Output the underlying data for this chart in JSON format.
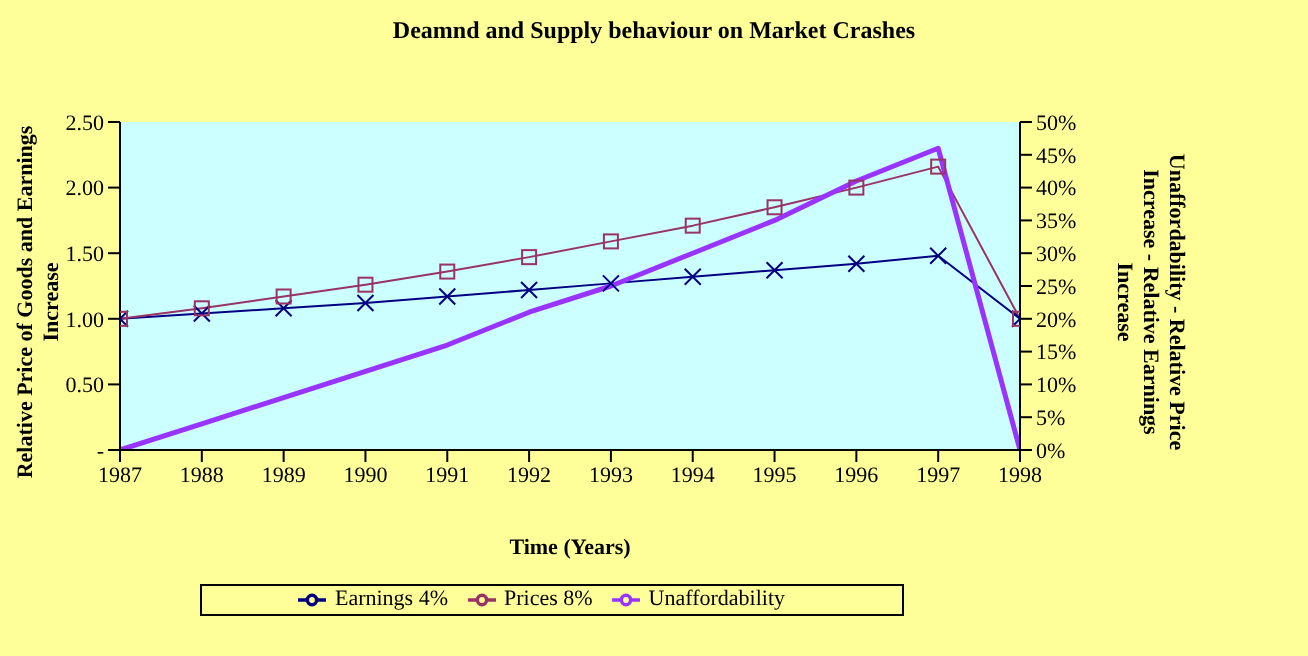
{
  "chart_data": {
    "type": "line",
    "title": "Deamnd and Supply behaviour on Market Crashes",
    "xlabel": "Time (Years)",
    "ylabel": "Relative Price of Goods and Earnings Increase",
    "y2label": "Unaffordability - Relative Price Increase - Relative Earnings Increase",
    "x": [
      1987,
      1988,
      1989,
      1990,
      1991,
      1992,
      1993,
      1994,
      1995,
      1996,
      1997,
      1998
    ],
    "xlim": [
      1987,
      1998
    ],
    "xticks": [
      1987,
      1988,
      1989,
      1990,
      1991,
      1992,
      1993,
      1994,
      1995,
      1996,
      1997,
      1998
    ],
    "ylim": [
      0,
      2.5
    ],
    "yticks": [
      {
        "value": 0,
        "label": "-"
      },
      {
        "value": 0.5,
        "label": "0.50"
      },
      {
        "value": 1,
        "label": "1.00"
      },
      {
        "value": 1.5,
        "label": "1.50"
      },
      {
        "value": 2,
        "label": "2.00"
      },
      {
        "value": 2.5,
        "label": "2.50"
      }
    ],
    "y2lim": [
      0,
      50
    ],
    "y2ticks": [
      {
        "value": 0,
        "label": "0%"
      },
      {
        "value": 5,
        "label": "5%"
      },
      {
        "value": 10,
        "label": "10%"
      },
      {
        "value": 15,
        "label": "15%"
      },
      {
        "value": 20,
        "label": "20%"
      },
      {
        "value": 25,
        "label": "25%"
      },
      {
        "value": 30,
        "label": "30%"
      },
      {
        "value": 35,
        "label": "35%"
      },
      {
        "value": 40,
        "label": "40%"
      },
      {
        "value": 45,
        "label": "45%"
      },
      {
        "value": 50,
        "label": "50%"
      }
    ],
    "legend": "bottom",
    "series": [
      {
        "name": "Earnings 4%",
        "color": "#000080",
        "marker": "cross",
        "values": [
          1.0,
          1.04,
          1.08,
          1.12,
          1.17,
          1.22,
          1.27,
          1.32,
          1.37,
          1.42,
          1.48,
          1.0
        ]
      },
      {
        "name": "Prices 8%",
        "color": "#993366",
        "marker": "square",
        "values": [
          1.0,
          1.08,
          1.17,
          1.26,
          1.36,
          1.47,
          1.59,
          1.71,
          1.85,
          2.0,
          2.16,
          1.0
        ]
      },
      {
        "name": "Unaffordability",
        "color": "#9933ff",
        "marker": "none",
        "axis": "y2",
        "values": [
          0,
          4,
          8,
          12,
          16,
          21,
          25,
          30,
          35,
          41,
          46,
          0
        ]
      }
    ]
  }
}
